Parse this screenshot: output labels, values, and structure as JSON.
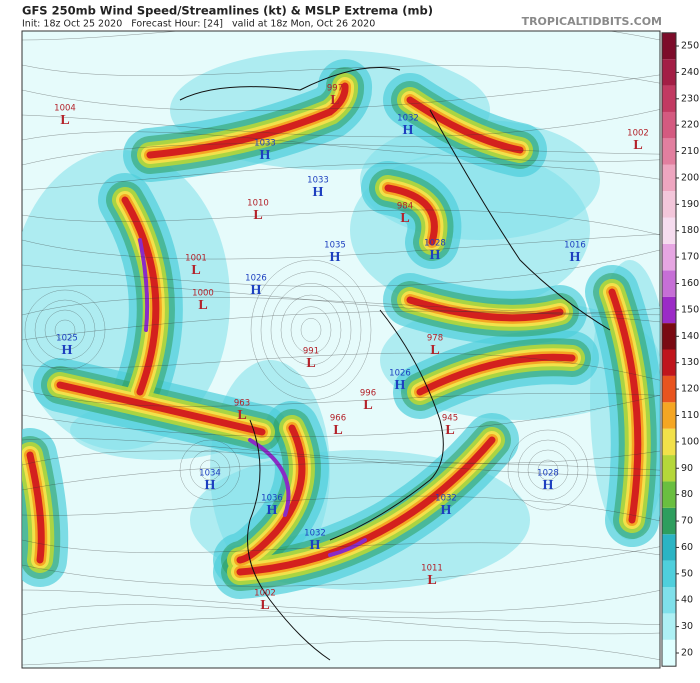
{
  "header": {
    "title": "GFS 250mb Wind Speed/Streamlines (kt) & MSLP Extrema (mb)",
    "subtitle": "Init: 18z Oct 25 2020   Forecast Hour: [24]   valid at 18z Mon, Oct 26 2020",
    "site": "TROPICALTIDBITS.COM"
  },
  "colorbar": {
    "ticks": [
      20,
      30,
      40,
      50,
      60,
      70,
      80,
      90,
      100,
      110,
      120,
      130,
      140,
      150,
      160,
      170,
      180,
      190,
      200,
      210,
      220,
      230,
      240,
      250
    ],
    "colors": [
      "#e0ffff",
      "#aef0f4",
      "#7fe0ea",
      "#4fcfdc",
      "#2bb4c4",
      "#2e9e5e",
      "#6abf40",
      "#b5d73a",
      "#f2e14a",
      "#f5a623",
      "#e8541f",
      "#c0151c",
      "#7a0a12",
      "#9b2bc6",
      "#c66fd6",
      "#e6a6e2",
      "#f6dcef",
      "#f3c6da",
      "#eea6c0",
      "#e27f9f",
      "#d45a80",
      "#c23a62",
      "#a31e45",
      "#7d0c2a"
    ]
  },
  "centers": [
    {
      "label": "L",
      "value": 1004
    },
    {
      "label": "L",
      "value": 997
    },
    {
      "label": "H",
      "value": 1032
    },
    {
      "label": "L",
      "value": 1002
    },
    {
      "label": "H",
      "value": 1033
    },
    {
      "label": "H",
      "value": 1033
    },
    {
      "label": "L",
      "value": 1010
    },
    {
      "label": "L",
      "value": 984
    },
    {
      "label": "H",
      "value": 1028
    },
    {
      "label": "H",
      "value": 1016
    },
    {
      "label": "L",
      "value": 1001
    },
    {
      "label": "H",
      "value": 1035
    },
    {
      "label": "H",
      "value": 1026
    },
    {
      "label": "L",
      "value": 1000
    },
    {
      "label": "H",
      "value": 1025
    },
    {
      "label": "L",
      "value": 991
    },
    {
      "label": "L",
      "value": 978
    },
    {
      "label": "H",
      "value": 1026
    },
    {
      "label": "L",
      "value": 996
    },
    {
      "label": "L",
      "value": 963
    },
    {
      "label": "L",
      "value": 966
    },
    {
      "label": "L",
      "value": 945
    },
    {
      "label": "H",
      "value": 1034
    },
    {
      "label": "H",
      "value": 1028
    },
    {
      "label": "H",
      "value": 1032
    },
    {
      "label": "H",
      "value": 1036
    },
    {
      "label": "H",
      "value": 1032
    },
    {
      "label": "L",
      "value": 1011
    },
    {
      "label": "L",
      "value": 1002
    }
  ]
}
